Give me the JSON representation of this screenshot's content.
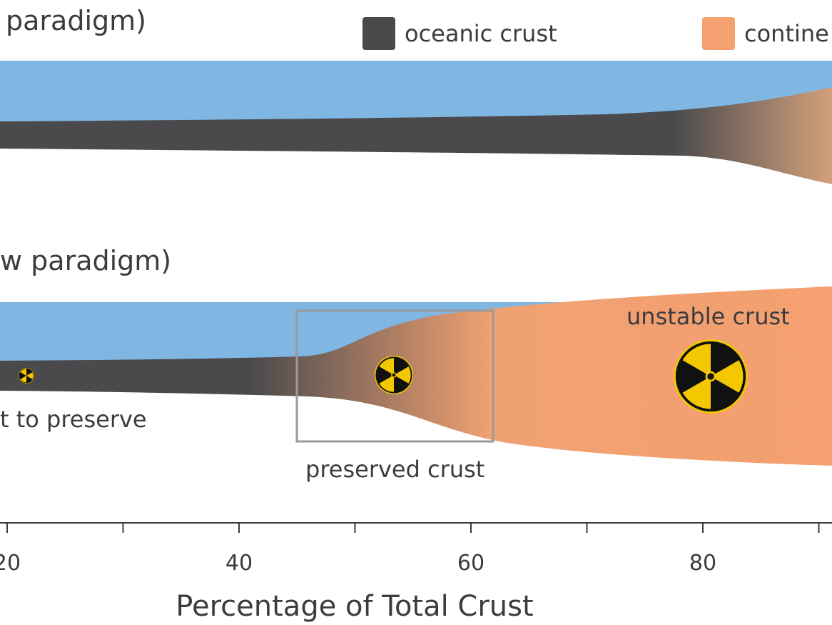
{
  "panels": {
    "top": {
      "title": "paradigm)"
    },
    "bottom": {
      "title": "w paradigm)",
      "left_note": "t to preserve",
      "box_label": "preserved crust",
      "unstable_label": "unstable crust"
    }
  },
  "legend": [
    {
      "label": "oceanic crust",
      "color": "#4a4a4c"
    },
    {
      "label": "contine",
      "color": "#f4a070"
    }
  ],
  "axis": {
    "label": "Percentage of Total Crust",
    "ticks": [
      {
        "value": 20,
        "label": "20"
      },
      {
        "value": 30,
        "label": ""
      },
      {
        "value": 40,
        "label": "40"
      },
      {
        "value": 50,
        "label": ""
      },
      {
        "value": 60,
        "label": "60"
      },
      {
        "value": 70,
        "label": ""
      },
      {
        "value": 80,
        "label": "80"
      },
      {
        "value": 90,
        "label": ""
      }
    ]
  },
  "icons": [
    {
      "name": "radiation-icon-small"
    },
    {
      "name": "radiation-icon-medium"
    },
    {
      "name": "radiation-icon-large"
    }
  ],
  "colors": {
    "ocean": "#80b6e2",
    "oceanic_crust": "#4a4a4c",
    "continental_crust": "#f4a070",
    "radiation_yellow": "#f3c800",
    "box_stroke": "#9a9a9a",
    "text": "#3c3c3e"
  }
}
